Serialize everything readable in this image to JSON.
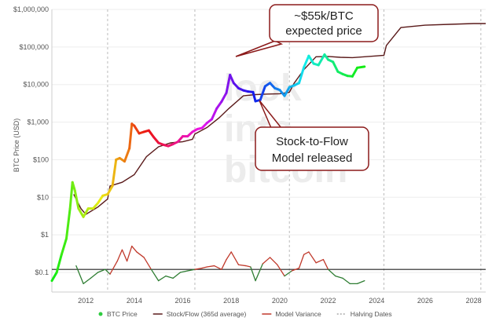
{
  "chart_data": {
    "type": "line",
    "ylabel": "BTC Price (USD)",
    "y_scale": "log",
    "ylim": [
      0.03,
      1000000
    ],
    "xlim": [
      2010.6,
      2028.5
    ],
    "y_ticks": [
      {
        "value": 1000000,
        "label": "$1,000,000"
      },
      {
        "value": 100000,
        "label": "$100,000"
      },
      {
        "value": 10000,
        "label": "$10,000"
      },
      {
        "value": 1000,
        "label": "$1,000"
      },
      {
        "value": 100,
        "label": "$100"
      },
      {
        "value": 10,
        "label": "$10"
      },
      {
        "value": 1,
        "label": "$1"
      },
      {
        "value": 0.1,
        "label": "$0.1"
      }
    ],
    "x_ticks": [
      "2012",
      "2014",
      "2016",
      "2018",
      "2020",
      "2022",
      "2024",
      "2026",
      "2028"
    ],
    "halving_dates": [
      2012.9,
      2016.5,
      2020.4,
      2024.3,
      2028.3
    ],
    "variance_baseline": 0.12,
    "watermark": [
      "look",
      "into",
      "bitcoin"
    ],
    "series": [
      {
        "name": "BTC Price",
        "color": "colour-by-time",
        "x": [
          2010.6,
          2010.8,
          2011.0,
          2011.2,
          2011.35,
          2011.45,
          2011.55,
          2011.7,
          2011.9,
          2012.1,
          2012.3,
          2012.5,
          2012.7,
          2012.9,
          2013.1,
          2013.25,
          2013.4,
          2013.6,
          2013.8,
          2013.9,
          2014.0,
          2014.2,
          2014.4,
          2014.6,
          2014.8,
          2015.0,
          2015.2,
          2015.4,
          2015.6,
          2015.8,
          2016.0,
          2016.2,
          2016.4,
          2016.6,
          2016.8,
          2017.0,
          2017.2,
          2017.4,
          2017.6,
          2017.8,
          2017.95,
          2018.1,
          2018.3,
          2018.5,
          2018.7,
          2018.9,
          2019.0,
          2019.2,
          2019.4,
          2019.6,
          2019.8,
          2020.0,
          2020.2,
          2020.4,
          2020.6,
          2020.8,
          2021.0,
          2021.2,
          2021.4,
          2021.6,
          2021.85,
          2022.0,
          2022.2,
          2022.4,
          2022.6,
          2022.8,
          2023.0,
          2023.2,
          2023.5
        ],
        "values": [
          0.06,
          0.1,
          0.3,
          0.8,
          5,
          25,
          15,
          5,
          3,
          5,
          5,
          7,
          11,
          12,
          20,
          100,
          110,
          90,
          200,
          900,
          800,
          500,
          550,
          600,
          400,
          280,
          250,
          230,
          260,
          300,
          420,
          420,
          550,
          650,
          700,
          950,
          1200,
          2300,
          3500,
          6000,
          18000,
          11000,
          8000,
          7000,
          6500,
          6300,
          3600,
          3900,
          9000,
          11000,
          8000,
          7200,
          5000,
          8500,
          9500,
          11000,
          29000,
          58000,
          36000,
          33000,
          63000,
          46000,
          40000,
          22000,
          19000,
          17000,
          16500,
          28000,
          30000
        ]
      },
      {
        "name": "Stock/Flow (365d average)",
        "color": "#5a1a1a",
        "x": [
          2011.5,
          2011.8,
          2012.0,
          2012.5,
          2012.9,
          2013.0,
          2013.5,
          2014.0,
          2014.5,
          2015.0,
          2015.5,
          2016.0,
          2016.4,
          2016.5,
          2017.0,
          2017.5,
          2017.9,
          2018.5,
          2019.0,
          2019.5,
          2020.0,
          2020.4,
          2020.6,
          2021.0,
          2021.5,
          2022.0,
          2022.5,
          2023.0,
          2023.5,
          2024.0,
          2024.3,
          2024.4,
          2025.0,
          2026.0,
          2027.0,
          2028.0,
          2028.5
        ],
        "values": [
          12,
          5,
          3.5,
          5.5,
          9,
          20,
          25,
          40,
          120,
          220,
          280,
          300,
          350,
          480,
          720,
          1300,
          2300,
          5000,
          5400,
          5600,
          5700,
          6200,
          11000,
          25000,
          55000,
          56000,
          53000,
          52000,
          55000,
          58000,
          60000,
          110000,
          330000,
          380000,
          400000,
          420000,
          420000
        ]
      },
      {
        "name": "Model Variance",
        "color": "colour-by-sign",
        "x": [
          2011.6,
          2011.9,
          2012.2,
          2012.5,
          2012.8,
          2013.0,
          2013.3,
          2013.5,
          2013.7,
          2013.9,
          2014.1,
          2014.4,
          2014.7,
          2015.0,
          2015.3,
          2015.6,
          2015.9,
          2016.2,
          2016.5,
          2016.8,
          2017.0,
          2017.3,
          2017.6,
          2017.8,
          2018.0,
          2018.3,
          2018.6,
          2018.8,
          2019.0,
          2019.3,
          2019.6,
          2019.9,
          2020.2,
          2020.5,
          2020.8,
          2021.0,
          2021.2,
          2021.5,
          2021.8,
          2022.0,
          2022.3,
          2022.6,
          2022.9,
          2023.2,
          2023.5
        ],
        "values": [
          0.15,
          0.05,
          0.07,
          0.1,
          0.12,
          0.09,
          0.2,
          0.4,
          0.2,
          0.5,
          0.35,
          0.25,
          0.12,
          0.06,
          0.08,
          0.07,
          0.1,
          0.11,
          0.12,
          0.13,
          0.14,
          0.15,
          0.12,
          0.22,
          0.35,
          0.16,
          0.15,
          0.14,
          0.06,
          0.17,
          0.25,
          0.16,
          0.08,
          0.11,
          0.13,
          0.3,
          0.35,
          0.18,
          0.22,
          0.12,
          0.08,
          0.07,
          0.05,
          0.05,
          0.06
        ]
      },
      {
        "name": "Halving Dates",
        "color": "#bbbbbb"
      }
    ],
    "annotations": [
      {
        "lines": [
          "~$55k/BTC",
          "expected price"
        ],
        "border": "#8b1a1a"
      },
      {
        "lines": [
          "Stock-to-Flow",
          "Model released"
        ],
        "border": "#8b1a1a"
      }
    ],
    "legend": {
      "placement": "bottom",
      "items": [
        {
          "label": "BTC Price",
          "marker": "dot",
          "color": "#2ecc40"
        },
        {
          "label": "Stock/Flow (365d average)",
          "marker": "line",
          "color": "#5a1a1a"
        },
        {
          "label": "Model Variance",
          "marker": "line",
          "color": "#c0392b"
        },
        {
          "label": "Halving Dates",
          "marker": "dashed",
          "color": "#aaaaaa"
        }
      ]
    }
  }
}
